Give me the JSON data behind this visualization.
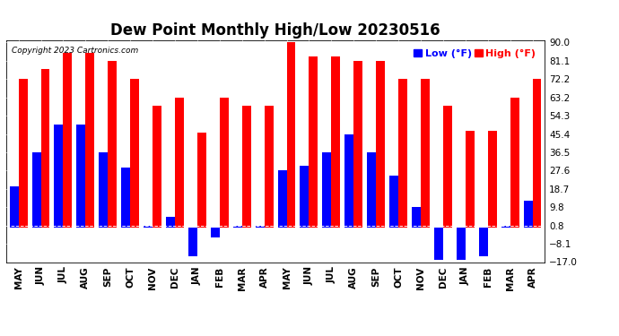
{
  "title": "Dew Point Monthly High/Low 20230516",
  "copyright": "Copyright 2023 Cartronics.com",
  "months": [
    "MAY",
    "JUN",
    "JUL",
    "AUG",
    "SEP",
    "OCT",
    "NOV",
    "DEC",
    "JAN",
    "FEB",
    "MAR",
    "APR",
    "MAY",
    "JUN",
    "JUL",
    "AUG",
    "SEP",
    "OCT",
    "NOV",
    "DEC",
    "JAN",
    "FEB",
    "MAR",
    "APR"
  ],
  "high": [
    72.2,
    77.0,
    85.0,
    85.0,
    81.1,
    72.2,
    59.0,
    63.2,
    46.0,
    63.2,
    59.0,
    59.0,
    90.0,
    83.0,
    83.0,
    81.1,
    81.1,
    72.2,
    72.2,
    59.0,
    47.0,
    47.0,
    63.2,
    72.2
  ],
  "low": [
    20.0,
    36.5,
    50.0,
    50.0,
    36.5,
    29.0,
    0.8,
    5.0,
    -14.0,
    -5.0,
    0.8,
    0.8,
    27.6,
    30.0,
    36.5,
    45.4,
    36.5,
    25.0,
    9.8,
    -16.0,
    -16.0,
    -14.0,
    0.8,
    13.0
  ],
  "ylim": [
    -17.0,
    91.0
  ],
  "yticks": [
    90.0,
    81.1,
    72.2,
    63.2,
    54.3,
    45.4,
    36.5,
    27.6,
    18.7,
    9.8,
    0.8,
    -8.1,
    -17.0
  ],
  "high_color": "#ff0000",
  "low_color": "#0000ff",
  "bg_color": "#ffffff",
  "grid_color": "#aaaaaa",
  "title_fontsize": 12,
  "axis_fontsize": 7.5,
  "legend_fontsize": 8
}
